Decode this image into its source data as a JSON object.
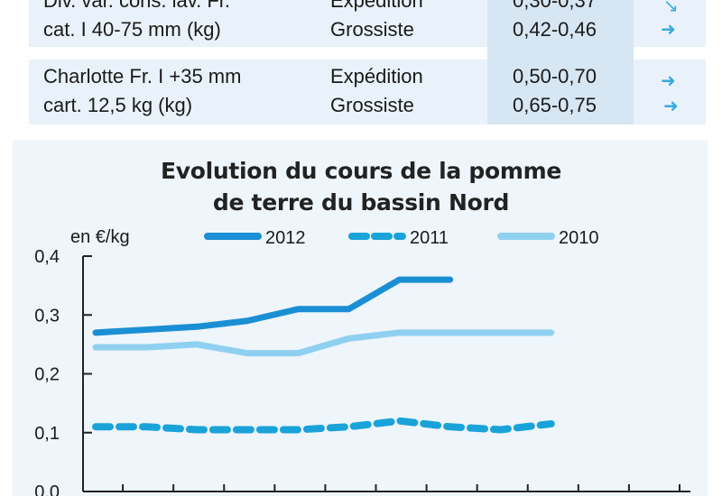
{
  "table": {
    "rows": [
      {
        "product_lines": [
          "Div. var. cons. lav. Fr.",
          "cat. I 40-75 mm (kg)"
        ],
        "stages": [
          "Expédition",
          "Grossiste"
        ],
        "prices": [
          "0,30-0,37",
          "0,42-0,46"
        ],
        "trend_icons": [
          "arrow-down-right-icon",
          "arrow-right-icon"
        ]
      },
      {
        "product_lines": [
          "Charlotte Fr. I +35 mm",
          "cart. 12,5 kg (kg)"
        ],
        "stages": [
          "Expédition",
          "Grossiste"
        ],
        "prices": [
          "0,50-0,70",
          "0,65-0,75"
        ],
        "trend_icons": [
          "arrow-right-icon",
          "arrow-right-icon"
        ]
      }
    ]
  },
  "chart_data": {
    "type": "line",
    "title_lines": [
      "Evolution du cours de la pomme",
      "de terre du bassin Nord"
    ],
    "ylabel": "en €/kg",
    "ylim": [
      0,
      0.4
    ],
    "y_ticks": [
      "0,0",
      "0,1",
      "0,2",
      "0,3",
      "0,4"
    ],
    "grid": false,
    "legend_position": "top",
    "x": [
      1,
      2,
      3,
      4,
      5,
      6,
      7,
      8,
      9,
      10,
      11,
      12
    ],
    "series": [
      {
        "name": "2012",
        "style": "solid",
        "color": "#1a8fd4",
        "values": [
          0.27,
          0.275,
          0.28,
          0.29,
          0.31,
          0.31,
          0.36,
          0.36,
          null,
          null,
          null,
          null
        ]
      },
      {
        "name": "2011",
        "style": "dashed",
        "color": "#1aa3d9",
        "values": [
          0.11,
          0.11,
          0.105,
          0.105,
          0.105,
          0.11,
          0.12,
          0.11,
          0.105,
          0.115,
          null,
          null
        ]
      },
      {
        "name": "2010",
        "style": "solid",
        "color": "#8fd0f0",
        "values": [
          0.245,
          0.245,
          0.25,
          0.235,
          0.235,
          0.26,
          0.27,
          0.27,
          0.27,
          0.27,
          null,
          null
        ]
      }
    ]
  }
}
